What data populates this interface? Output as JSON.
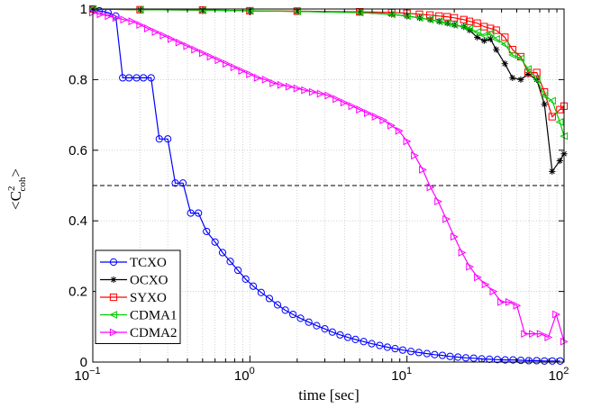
{
  "chart_data": {
    "type": "line",
    "xscale": "log",
    "xlim": [
      0.1,
      100
    ],
    "ylim": [
      0,
      1
    ],
    "grid": true,
    "legend_position": "bottom-left",
    "xlabel": "time  [sec]",
    "ylabel": {
      "base": "<C",
      "sup": "2",
      "sub": "coh",
      "close": ">"
    },
    "xticks": [
      {
        "value": 0.1,
        "base": "10",
        "exp": "−1"
      },
      {
        "value": 1,
        "base": "10",
        "exp": "0"
      },
      {
        "value": 10,
        "base": "10",
        "exp": "1"
      },
      {
        "value": 100,
        "base": "10",
        "exp": "2"
      }
    ],
    "yticks": [
      {
        "value": 0,
        "label": "0"
      },
      {
        "value": 0.2,
        "label": "0.2"
      },
      {
        "value": 0.4,
        "label": "0.4"
      },
      {
        "value": 0.6,
        "label": "0.6"
      },
      {
        "value": 0.8,
        "label": "0.8"
      },
      {
        "value": 1,
        "label": "1"
      }
    ],
    "threshold": {
      "y": 0.5,
      "style": "dashed",
      "color": "#000000"
    },
    "series": [
      {
        "name": "TCXO",
        "color": "#0000ff",
        "marker": "circle",
        "x": [
          0.1,
          0.11,
          0.125,
          0.14,
          0.155,
          0.17,
          0.19,
          0.21,
          0.235,
          0.265,
          0.3,
          0.335,
          0.375,
          0.42,
          0.47,
          0.53,
          0.6,
          0.67,
          0.75,
          0.84,
          0.94,
          1.05,
          1.18,
          1.33,
          1.5,
          1.68,
          1.88,
          2.1,
          2.37,
          2.66,
          3,
          3.35,
          3.75,
          4.2,
          4.7,
          5.3,
          5.96,
          6.7,
          7.5,
          8.4,
          9.4,
          10.6,
          11.9,
          13.4,
          15,
          16.8,
          18.8,
          21.1,
          23.7,
          26.6,
          29.9,
          33.5,
          37.6,
          42.2,
          47.3,
          53.1,
          59.6,
          66.9,
          75,
          84.2,
          94.4
        ],
        "y": [
          1,
          0.995,
          0.99,
          0.98,
          0.805,
          0.805,
          0.805,
          0.805,
          0.805,
          0.632,
          0.632,
          0.507,
          0.507,
          0.422,
          0.422,
          0.37,
          0.34,
          0.31,
          0.285,
          0.26,
          0.235,
          0.215,
          0.197,
          0.18,
          0.162,
          0.147,
          0.135,
          0.124,
          0.113,
          0.103,
          0.094,
          0.085,
          0.077,
          0.07,
          0.064,
          0.058,
          0.052,
          0.047,
          0.042,
          0.038,
          0.034,
          0.03,
          0.027,
          0.024,
          0.021,
          0.019,
          0.016,
          0.014,
          0.012,
          0.011,
          0.009,
          0.008,
          0.007,
          0.006,
          0.006,
          0.005,
          0.004,
          0.004,
          0.003,
          0.003,
          0.003
        ]
      },
      {
        "name": "OCXO",
        "color": "#000000",
        "marker": "star",
        "x": [
          0.1,
          0.2,
          0.5,
          1,
          2,
          5,
          8,
          10,
          12,
          14,
          16,
          18,
          20,
          23,
          25,
          28,
          31,
          34,
          37,
          42,
          47,
          53,
          59,
          67,
          75,
          84,
          94,
          100
        ],
        "y": [
          1,
          0.998,
          0.997,
          0.995,
          0.993,
          0.99,
          0.985,
          0.98,
          0.975,
          0.97,
          0.965,
          0.96,
          0.955,
          0.95,
          0.94,
          0.92,
          0.91,
          0.915,
          0.885,
          0.845,
          0.805,
          0.8,
          0.815,
          0.8,
          0.73,
          0.54,
          0.57,
          0.59
        ]
      },
      {
        "name": "SYXO",
        "color": "#ff0000",
        "marker": "square",
        "x": [
          0.1,
          0.2,
          0.5,
          1,
          2,
          5,
          8,
          10,
          12,
          14,
          16,
          18,
          20,
          23,
          25,
          28,
          31,
          34,
          37,
          42,
          47,
          53,
          59,
          67,
          75,
          84,
          94,
          100
        ],
        "y": [
          1,
          0.998,
          0.997,
          0.995,
          0.994,
          0.992,
          0.99,
          0.988,
          0.985,
          0.983,
          0.98,
          0.978,
          0.975,
          0.97,
          0.965,
          0.96,
          0.95,
          0.945,
          0.94,
          0.92,
          0.885,
          0.865,
          0.82,
          0.82,
          0.765,
          0.695,
          0.715,
          0.725
        ]
      },
      {
        "name": "CDMA1",
        "color": "#00cc00",
        "marker": "triangle-left",
        "x": [
          0.1,
          0.2,
          0.5,
          1,
          2,
          5,
          8,
          10,
          12,
          14,
          16,
          18,
          20,
          23,
          25,
          28,
          31,
          34,
          37,
          42,
          47,
          53,
          59,
          67,
          75,
          84,
          94,
          100
        ],
        "y": [
          1,
          0.998,
          0.997,
          0.995,
          0.993,
          0.99,
          0.985,
          0.98,
          0.975,
          0.97,
          0.965,
          0.96,
          0.955,
          0.95,
          0.945,
          0.935,
          0.925,
          0.93,
          0.915,
          0.9,
          0.87,
          0.86,
          0.83,
          0.8,
          0.755,
          0.74,
          0.68,
          0.64
        ]
      },
      {
        "name": "CDMA2",
        "color": "#ff00ff",
        "marker": "triangle-right",
        "x": [
          0.1,
          0.112,
          0.126,
          0.141,
          0.158,
          0.178,
          0.2,
          0.224,
          0.251,
          0.282,
          0.316,
          0.355,
          0.398,
          0.447,
          0.501,
          0.562,
          0.631,
          0.708,
          0.794,
          0.891,
          1,
          1.12,
          1.26,
          1.41,
          1.58,
          1.78,
          2,
          2.24,
          2.51,
          2.82,
          3.16,
          3.55,
          3.98,
          4.47,
          5.01,
          5.62,
          6.31,
          7.08,
          7.94,
          8.91,
          10,
          11.2,
          12.6,
          14.1,
          15.8,
          17.8,
          20,
          22.4,
          25.1,
          28.2,
          31.6,
          35.5,
          39.8,
          44.7,
          50.1,
          56.2,
          63.1,
          70.8,
          79.4,
          89.1,
          100
        ],
        "y": [
          0.99,
          0.985,
          0.98,
          0.975,
          0.97,
          0.965,
          0.955,
          0.945,
          0.935,
          0.925,
          0.915,
          0.905,
          0.895,
          0.885,
          0.875,
          0.865,
          0.855,
          0.845,
          0.835,
          0.825,
          0.815,
          0.805,
          0.8,
          0.79,
          0.785,
          0.78,
          0.775,
          0.77,
          0.765,
          0.76,
          0.755,
          0.745,
          0.735,
          0.725,
          0.715,
          0.705,
          0.695,
          0.685,
          0.67,
          0.655,
          0.625,
          0.585,
          0.545,
          0.495,
          0.455,
          0.405,
          0.355,
          0.31,
          0.27,
          0.24,
          0.22,
          0.2,
          0.17,
          0.17,
          0.16,
          0.08,
          0.08,
          0.08,
          0.07,
          0.135,
          0.058
        ]
      }
    ]
  }
}
